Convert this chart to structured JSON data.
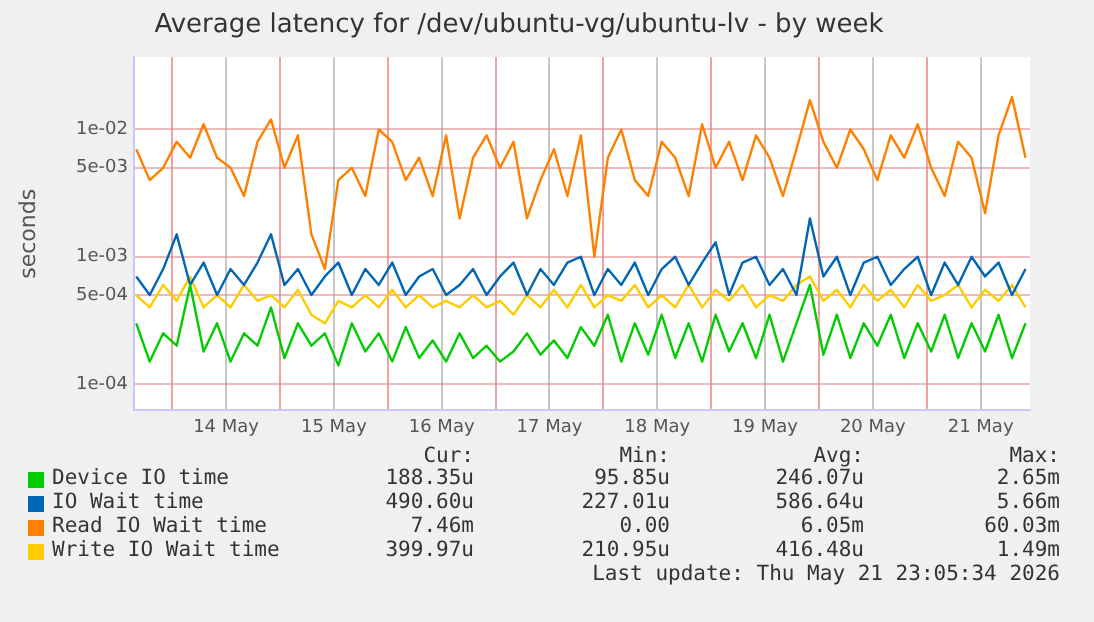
{
  "chart_data": {
    "type": "line",
    "title": "Average latency for /dev/ubuntu-vg/ubuntu-lv - by week",
    "ylabel": "seconds",
    "log": "y",
    "grid": true,
    "legend": "bottom",
    "marker": "none",
    "line_style": "solid",
    "x": [
      "2026-05-13T16:00",
      "2026-05-13T19:00",
      "2026-05-13T22:00",
      "2026-05-14T01:00",
      "2026-05-14T04:00",
      "2026-05-14T07:00",
      "2026-05-14T10:00",
      "2026-05-14T13:00",
      "2026-05-14T16:00",
      "2026-05-14T19:00",
      "2026-05-14T22:00",
      "2026-05-15T01:00",
      "2026-05-15T04:00",
      "2026-05-15T07:00",
      "2026-05-15T10:00",
      "2026-05-15T13:00",
      "2026-05-15T16:00",
      "2026-05-15T19:00",
      "2026-05-15T22:00",
      "2026-05-16T01:00",
      "2026-05-16T04:00",
      "2026-05-16T07:00",
      "2026-05-16T10:00",
      "2026-05-16T13:00",
      "2026-05-16T16:00",
      "2026-05-16T19:00",
      "2026-05-16T22:00",
      "2026-05-17T01:00",
      "2026-05-17T04:00",
      "2026-05-17T07:00",
      "2026-05-17T10:00",
      "2026-05-17T13:00",
      "2026-05-17T16:00",
      "2026-05-17T19:00",
      "2026-05-17T22:00",
      "2026-05-18T01:00",
      "2026-05-18T04:00",
      "2026-05-18T07:00",
      "2026-05-18T10:00",
      "2026-05-18T13:00",
      "2026-05-18T16:00",
      "2026-05-18T19:00",
      "2026-05-18T22:00",
      "2026-05-19T01:00",
      "2026-05-19T04:00",
      "2026-05-19T07:00",
      "2026-05-19T10:00",
      "2026-05-19T13:00",
      "2026-05-19T16:00",
      "2026-05-19T19:00",
      "2026-05-19T22:00",
      "2026-05-20T01:00",
      "2026-05-20T04:00",
      "2026-05-20T07:00",
      "2026-05-20T10:00",
      "2026-05-20T13:00",
      "2026-05-20T16:00",
      "2026-05-20T19:00",
      "2026-05-20T22:00",
      "2026-05-21T01:00",
      "2026-05-21T04:00",
      "2026-05-21T07:00",
      "2026-05-21T10:00",
      "2026-05-21T13:00",
      "2026-05-21T16:00",
      "2026-05-21T19:00",
      "2026-05-21T22:00"
    ],
    "xlim": [
      "2026-05-13T15:30",
      "2026-05-21T23:00"
    ],
    "xticks": [
      {
        "value": "2026-05-14T00:00",
        "label": null
      },
      {
        "value": "2026-05-14T12:00",
        "label": "14 May"
      },
      {
        "value": "2026-05-15T00:00",
        "label": null
      },
      {
        "value": "2026-05-15T12:00",
        "label": "15 May"
      },
      {
        "value": "2026-05-16T00:00",
        "label": null
      },
      {
        "value": "2026-05-16T12:00",
        "label": "16 May"
      },
      {
        "value": "2026-05-17T00:00",
        "label": null
      },
      {
        "value": "2026-05-17T12:00",
        "label": "17 May"
      },
      {
        "value": "2026-05-18T00:00",
        "label": null
      },
      {
        "value": "2026-05-18T12:00",
        "label": "18 May"
      },
      {
        "value": "2026-05-19T00:00",
        "label": null
      },
      {
        "value": "2026-05-19T12:00",
        "label": "19 May"
      },
      {
        "value": "2026-05-20T00:00",
        "label": null
      },
      {
        "value": "2026-05-20T12:00",
        "label": "20 May"
      },
      {
        "value": "2026-05-21T00:00",
        "label": null
      },
      {
        "value": "2026-05-21T12:00",
        "label": "21 May"
      }
    ],
    "ylim": [
      6.2e-05,
      0.037
    ],
    "yticks": [
      {
        "value": 0.0001,
        "label": "1e-04"
      },
      {
        "value": 0.0005,
        "label": "5e-04"
      },
      {
        "value": 0.001,
        "label": "1e-03"
      },
      {
        "value": 0.005,
        "label": "5e-03"
      },
      {
        "value": 0.01,
        "label": "1e-02"
      }
    ],
    "series": [
      {
        "name": "Device IO time",
        "color": "#00cc00",
        "values": [
          0.0003,
          0.00015,
          0.00025,
          0.0002,
          0.0006,
          0.00018,
          0.0003,
          0.00015,
          0.00025,
          0.0002,
          0.0004,
          0.00016,
          0.0003,
          0.0002,
          0.00025,
          0.00014,
          0.0003,
          0.00018,
          0.00025,
          0.00015,
          0.00028,
          0.00016,
          0.00022,
          0.00015,
          0.00025,
          0.00016,
          0.0002,
          0.00015,
          0.00018,
          0.00025,
          0.00017,
          0.00022,
          0.00016,
          0.00028,
          0.0002,
          0.00035,
          0.00015,
          0.0003,
          0.00017,
          0.00035,
          0.00016,
          0.0003,
          0.00015,
          0.00035,
          0.00018,
          0.0003,
          0.00016,
          0.00035,
          0.00015,
          0.0003,
          0.0006,
          0.00017,
          0.00035,
          0.00016,
          0.0003,
          0.0002,
          0.00035,
          0.00016,
          0.0003,
          0.00018,
          0.00035,
          0.00016,
          0.0003,
          0.00018,
          0.00035,
          0.00016,
          0.0003
        ]
      },
      {
        "name": "IO Wait time",
        "color": "#0066b3",
        "values": [
          0.0007,
          0.0005,
          0.0008,
          0.0015,
          0.0006,
          0.0009,
          0.0005,
          0.0008,
          0.0006,
          0.0009,
          0.0015,
          0.0006,
          0.0008,
          0.0005,
          0.0007,
          0.0009,
          0.0005,
          0.0008,
          0.0006,
          0.0009,
          0.0005,
          0.0007,
          0.0008,
          0.0005,
          0.0006,
          0.0008,
          0.0005,
          0.0007,
          0.0009,
          0.0005,
          0.0008,
          0.0006,
          0.0009,
          0.001,
          0.0005,
          0.0008,
          0.0006,
          0.0009,
          0.0005,
          0.0008,
          0.001,
          0.0006,
          0.0009,
          0.0013,
          0.0005,
          0.0009,
          0.001,
          0.0006,
          0.0008,
          0.0005,
          0.002,
          0.0007,
          0.001,
          0.0005,
          0.0009,
          0.001,
          0.0006,
          0.0008,
          0.001,
          0.0005,
          0.0009,
          0.0006,
          0.001,
          0.0007,
          0.0009,
          0.0005,
          0.0008
        ]
      },
      {
        "name": "Read IO Wait time",
        "color": "#ff8000",
        "values": [
          0.007,
          0.004,
          0.005,
          0.008,
          0.006,
          0.011,
          0.006,
          0.005,
          0.003,
          0.008,
          0.012,
          0.005,
          0.009,
          0.0015,
          0.0008,
          0.004,
          0.005,
          0.003,
          0.01,
          0.008,
          0.004,
          0.006,
          0.003,
          0.009,
          0.002,
          0.006,
          0.009,
          0.005,
          0.008,
          0.002,
          0.004,
          0.007,
          0.003,
          0.009,
          0.001,
          0.006,
          0.01,
          0.004,
          0.003,
          0.008,
          0.006,
          0.003,
          0.011,
          0.005,
          0.008,
          0.004,
          0.009,
          0.006,
          0.003,
          0.007,
          0.017,
          0.008,
          0.005,
          0.01,
          0.007,
          0.004,
          0.009,
          0.006,
          0.011,
          0.005,
          0.003,
          0.008,
          0.006,
          0.0022,
          0.009,
          0.018,
          0.006
        ]
      },
      {
        "name": "Write IO Wait time",
        "color": "#ffcc00",
        "values": [
          0.0005,
          0.0004,
          0.0006,
          0.00045,
          0.0007,
          0.0004,
          0.0005,
          0.0004,
          0.0006,
          0.00045,
          0.0005,
          0.0004,
          0.00055,
          0.00035,
          0.0003,
          0.00045,
          0.0004,
          0.0005,
          0.0004,
          0.00055,
          0.0004,
          0.0005,
          0.0004,
          0.00045,
          0.0004,
          0.0005,
          0.0004,
          0.00045,
          0.00035,
          0.0005,
          0.0004,
          0.00055,
          0.0004,
          0.0006,
          0.0004,
          0.0005,
          0.00045,
          0.0006,
          0.0004,
          0.0005,
          0.0004,
          0.0006,
          0.0004,
          0.00055,
          0.00045,
          0.0006,
          0.0004,
          0.0005,
          0.00045,
          0.0006,
          0.0007,
          0.00045,
          0.00055,
          0.0004,
          0.0006,
          0.00045,
          0.00055,
          0.0004,
          0.0006,
          0.00045,
          0.0005,
          0.0006,
          0.0004,
          0.00055,
          0.00045,
          0.0006,
          0.0004
        ]
      }
    ],
    "annotations": [
      "Cur:",
      "Min:",
      "Avg:",
      "Max:",
      "188.35u",
      "95.85u",
      "246.07u",
      "2.65m",
      "490.60u",
      "227.01u",
      "586.64u",
      "5.66m",
      "7.46m",
      "0.00",
      "6.05m",
      "60.03m",
      "399.97u",
      "210.95u",
      "416.48u",
      "1.49m",
      "Last update: Thu May 21 23:05:34 2026"
    ]
  }
}
